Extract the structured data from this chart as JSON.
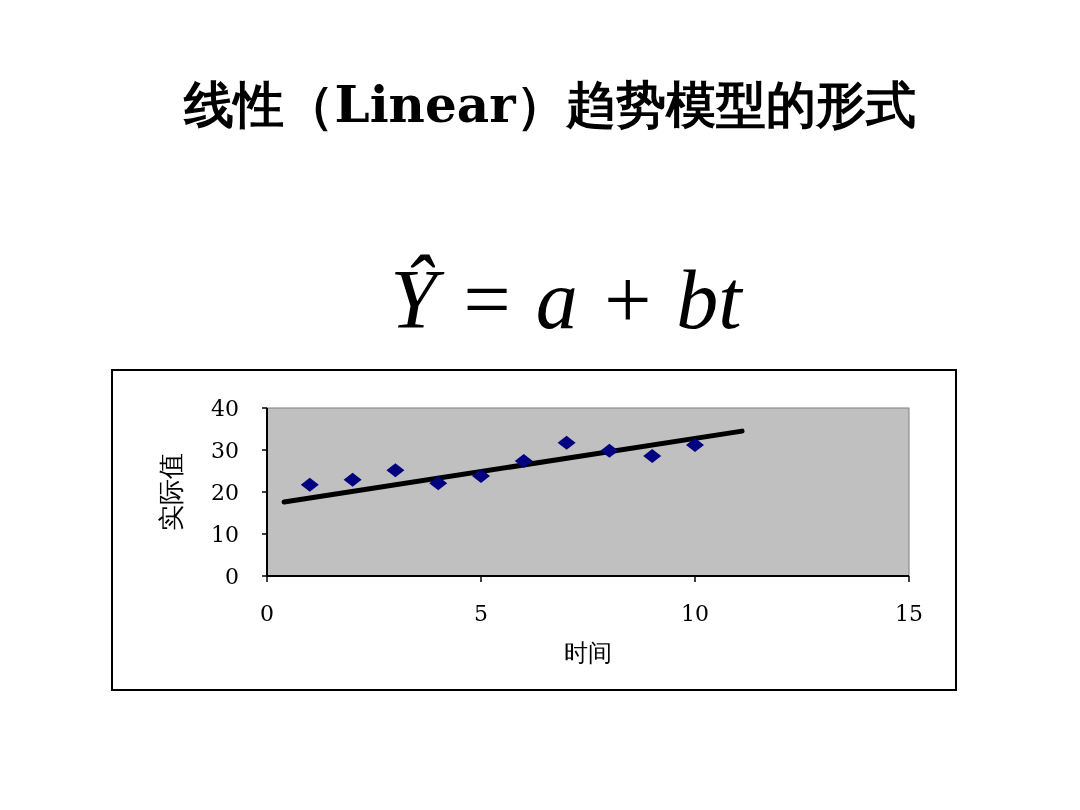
{
  "chart_data": {
    "type": "scatter",
    "title": "线性（Linear）趋势模型的形式",
    "subtitle": "Ŷ = a + bt",
    "xlabel": "时间",
    "ylabel": "实际值",
    "xlim": [
      0,
      15
    ],
    "xticks": [
      0,
      5,
      10,
      15
    ],
    "ylim": [
      0,
      40
    ],
    "yticks": [
      0,
      10,
      20,
      30,
      40
    ],
    "grid": false,
    "series": [
      {
        "type": "line",
        "marker": "none",
        "line_style": "solid",
        "color": "#000000",
        "x": [
          0.4,
          11.1
        ],
        "values": [
          17.6,
          34.5
        ]
      },
      {
        "marker": "diamond",
        "color": "#000080",
        "x": [
          1,
          2,
          3,
          4,
          5,
          6,
          7,
          8,
          9,
          10
        ],
        "values": [
          21.7,
          22.9,
          25.2,
          22.1,
          23.8,
          27.4,
          31.7,
          29.8,
          28.6,
          31.2
        ]
      }
    ]
  }
}
